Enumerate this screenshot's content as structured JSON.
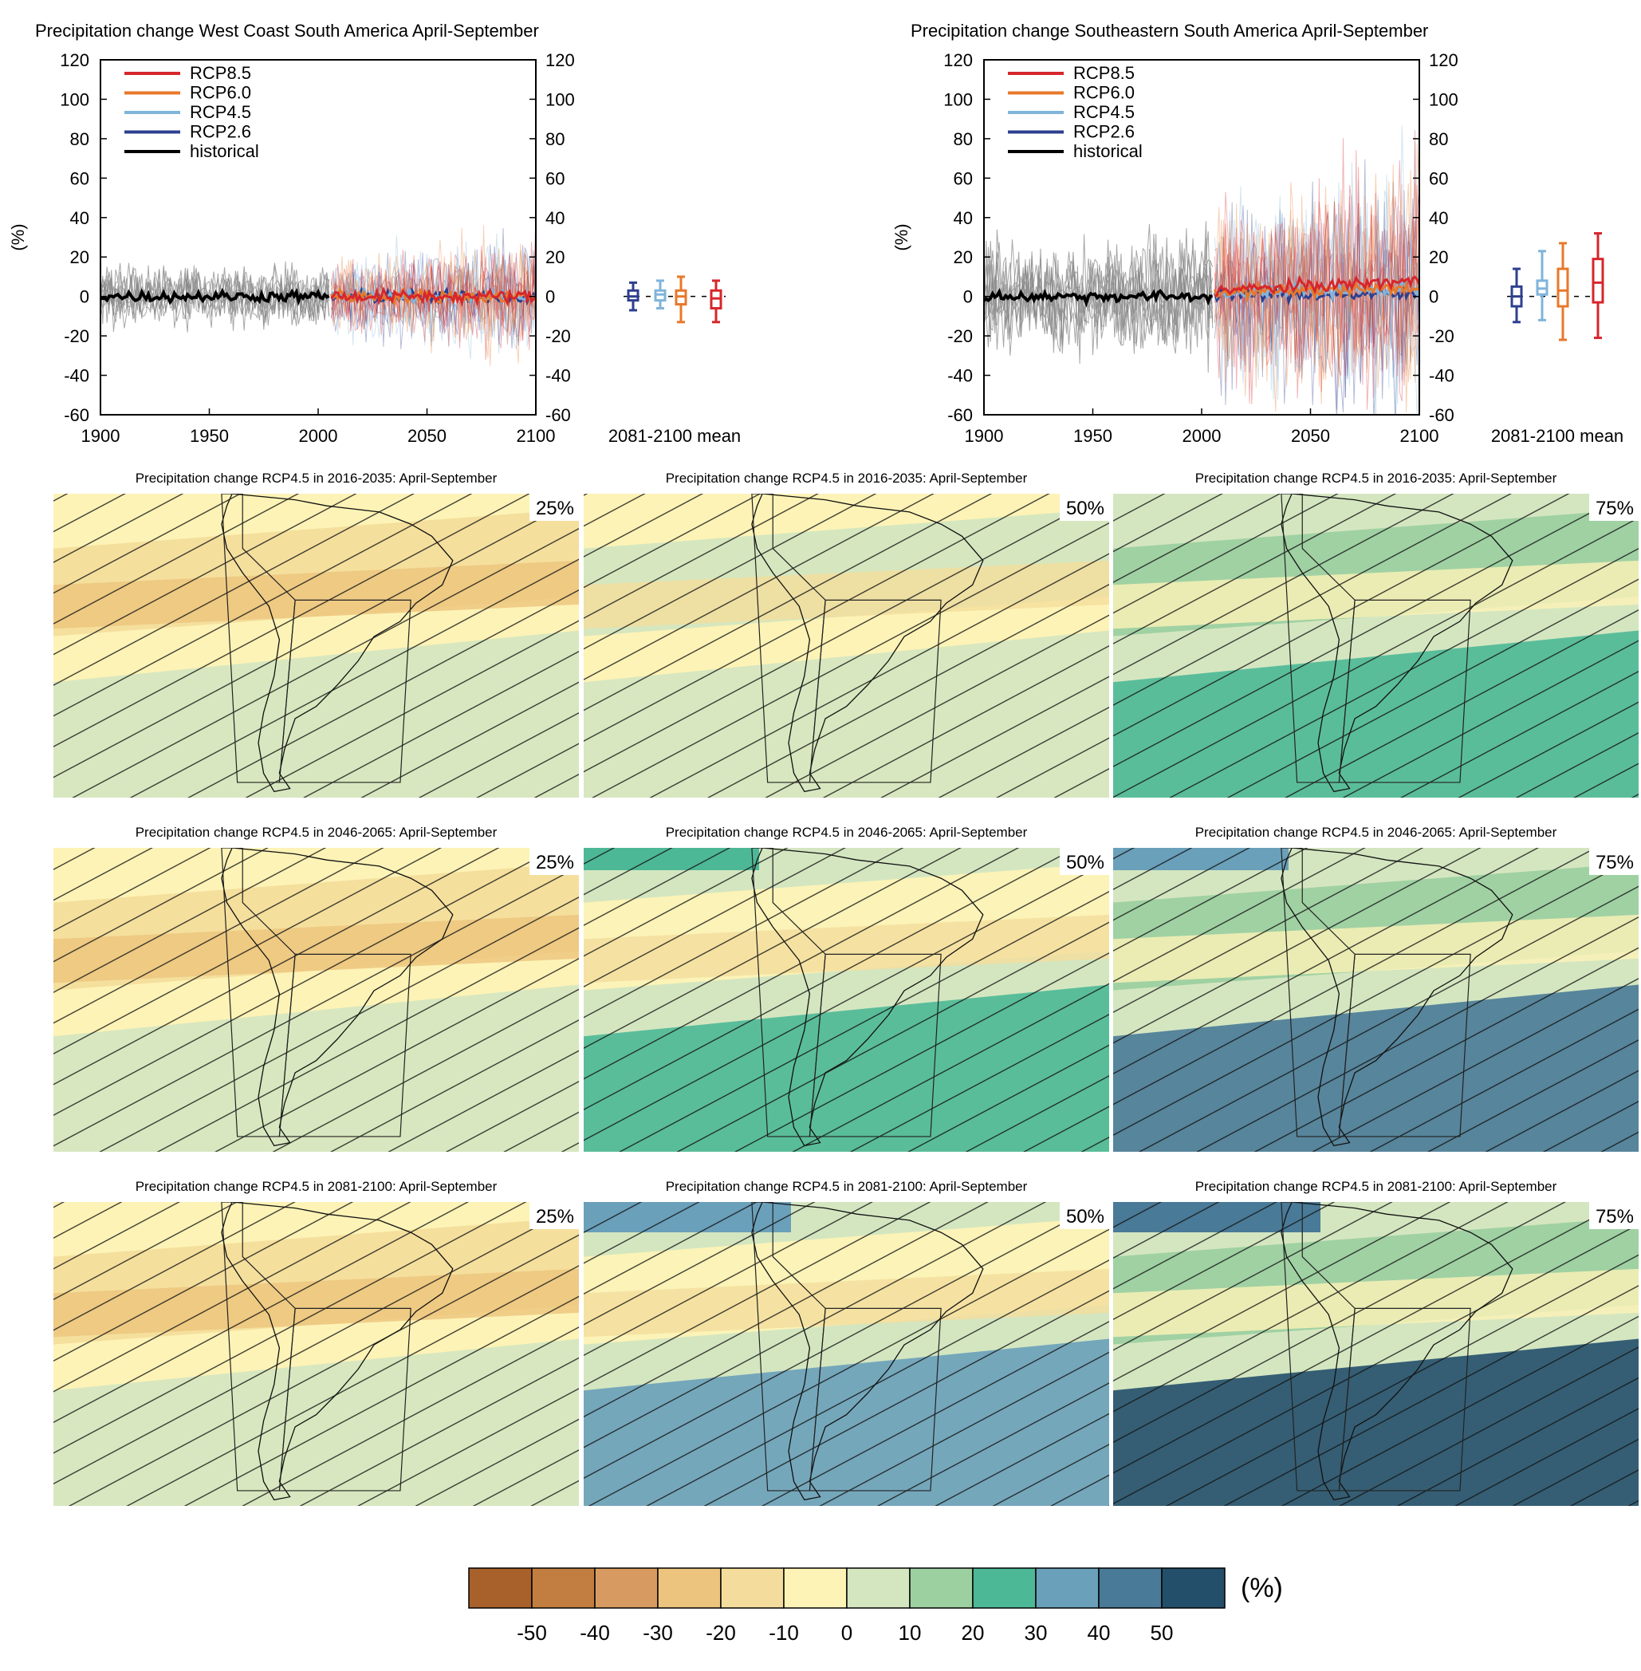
{
  "figure": {
    "ts_axis": {
      "y_ticks": [
        "120",
        "100",
        "80",
        "60",
        "40",
        "20",
        "0",
        "-20",
        "-40",
        "-60"
      ],
      "x_ticks": [
        "1900",
        "1950",
        "2000",
        "2050",
        "2100"
      ],
      "ylabel": "(%)",
      "box_label": "2081-2100 mean"
    },
    "legend": [
      {
        "label": "RCP8.5",
        "color": "#d7262b"
      },
      {
        "label": "RCP6.0",
        "color": "#e8782a"
      },
      {
        "label": "RCP4.5",
        "color": "#7fb4db"
      },
      {
        "label": "RCP2.6",
        "color": "#2d3f8f"
      },
      {
        "label": "historical",
        "color": "#000000"
      }
    ],
    "map_titles": [
      "Precipitation change RCP4.5 in 2016-2035: April-September",
      "Precipitation change RCP4.5 in 2046-2065: April-September",
      "Precipitation change RCP4.5 in 2081-2100: April-September"
    ],
    "percentiles": [
      "25%",
      "50%",
      "75%"
    ],
    "colorbar": {
      "unit": "(%)",
      "ticks": [
        "-50",
        "-40",
        "-30",
        "-20",
        "-10",
        "0",
        "10",
        "20",
        "30",
        "40",
        "50"
      ],
      "colors": [
        "#a8612b",
        "#c27e40",
        "#d79b61",
        "#ecc47d",
        "#f4dd9c",
        "#fdf3b6",
        "#d4e6c0",
        "#9dd0a1",
        "#4db896",
        "#6aa0ba",
        "#497a97",
        "#244f6b"
      ]
    }
  },
  "chart_data": [
    {
      "type": "line",
      "title": "Precipitation change West Coast South America April-September",
      "ylabel": "(%)",
      "xlim": [
        1900,
        2100
      ],
      "ylim": [
        -60,
        120
      ],
      "series": [
        {
          "name": "historical",
          "color": "#000000",
          "x": [
            1900,
            2005
          ],
          "values": [
            0,
            0
          ]
        },
        {
          "name": "RCP2.6",
          "color": "#2d3f8f",
          "x": [
            2006,
            2100
          ],
          "values": [
            0,
            0
          ]
        },
        {
          "name": "RCP4.5",
          "color": "#7fb4db",
          "x": [
            2006,
            2100
          ],
          "values": [
            0,
            0
          ]
        },
        {
          "name": "RCP6.0",
          "color": "#e8782a",
          "x": [
            2006,
            2100
          ],
          "values": [
            0,
            0
          ]
        },
        {
          "name": "RCP8.5",
          "color": "#d7262b",
          "x": [
            2006,
            2100
          ],
          "values": [
            0,
            0
          ]
        }
      ],
      "boxes_2081_2100_mean": [
        {
          "name": "RCP2.6",
          "color": "#2d3f8f",
          "min": -7,
          "q1": -2,
          "median": 0,
          "q3": 3,
          "max": 7
        },
        {
          "name": "RCP4.5",
          "color": "#7fb4db",
          "min": -6,
          "q1": -2,
          "median": 1,
          "q3": 3,
          "max": 8
        },
        {
          "name": "RCP6.0",
          "color": "#e8782a",
          "min": -13,
          "q1": -4,
          "median": 0,
          "q3": 3,
          "max": 10
        },
        {
          "name": "RCP8.5",
          "color": "#d7262b",
          "min": -13,
          "q1": -6,
          "median": -1,
          "q3": 3,
          "max": 8
        }
      ]
    },
    {
      "type": "line",
      "title": "Precipitation change Southeastern South America April-September",
      "ylabel": "(%)",
      "xlim": [
        1900,
        2100
      ],
      "ylim": [
        -60,
        120
      ],
      "series": [
        {
          "name": "historical",
          "color": "#000000",
          "x": [
            1900,
            2005
          ],
          "values": [
            0,
            0
          ]
        },
        {
          "name": "RCP2.6",
          "color": "#2d3f8f",
          "x": [
            2006,
            2100
          ],
          "values": [
            1,
            1
          ]
        },
        {
          "name": "RCP4.5",
          "color": "#7fb4db",
          "x": [
            2006,
            2100
          ],
          "values": [
            2,
            4
          ]
        },
        {
          "name": "RCP6.0",
          "color": "#e8782a",
          "x": [
            2006,
            2100
          ],
          "values": [
            2,
            4
          ]
        },
        {
          "name": "RCP8.5",
          "color": "#d7262b",
          "x": [
            2006,
            2100
          ],
          "values": [
            3,
            8
          ]
        }
      ],
      "boxes_2081_2100_mean": [
        {
          "name": "RCP2.6",
          "color": "#2d3f8f",
          "min": -13,
          "q1": -5,
          "median": 0,
          "q3": 5,
          "max": 14
        },
        {
          "name": "RCP4.5",
          "color": "#7fb4db",
          "min": -12,
          "q1": 1,
          "median": 4,
          "q3": 8,
          "max": 23
        },
        {
          "name": "RCP6.0",
          "color": "#e8782a",
          "min": -22,
          "q1": -5,
          "median": 3,
          "q3": 14,
          "max": 27
        },
        {
          "name": "RCP8.5",
          "color": "#d7262b",
          "min": -21,
          "q1": -3,
          "median": 7,
          "q3": 19,
          "max": 32
        }
      ]
    }
  ]
}
